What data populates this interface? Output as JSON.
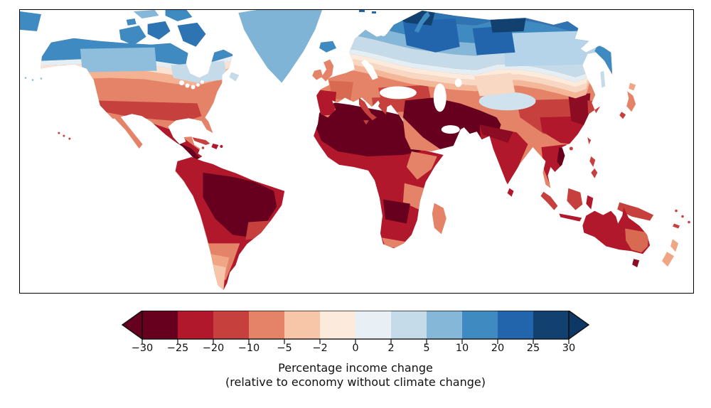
{
  "figure": {
    "kind": "choropleth world map with diverging colorbar",
    "background": "#ffffff",
    "frame_color": "#000000"
  },
  "colorbar": {
    "title_line1": "Percentage income change",
    "title_line2": "(relative to economy without climate change)",
    "ticks": [
      "−30",
      "−25",
      "−20",
      "−10",
      "−5",
      "−2",
      "0",
      "2",
      "5",
      "10",
      "20",
      "25",
      "30"
    ],
    "tick_values": [
      -30,
      -25,
      -20,
      -10,
      -5,
      -2,
      0,
      2,
      5,
      10,
      20,
      25,
      30
    ],
    "bins": [
      "#67001f",
      "#b2182b",
      "#c6403e",
      "#e58368",
      "#f7c5a8",
      "#fcebdd",
      "#e9f0f5",
      "#c6dbea",
      "#85b8d8",
      "#3e8ac1",
      "#2265ac",
      "#12406f"
    ],
    "under_color": "#67001f",
    "over_color": "#0d3765",
    "outline_color": "#111111"
  },
  "chart_data": {
    "type": "choropleth_map",
    "title": "Percentage income change (relative to economy without climate change)",
    "units": "percent",
    "scale_boundaries": [
      -30,
      -25,
      -20,
      -10,
      -5,
      -2,
      0,
      2,
      5,
      10,
      20,
      25,
      30
    ],
    "scale_extends": "both",
    "legend_position": "bottom center",
    "regions": [
      {
        "name": "Canada (most)",
        "approx_value": "+10 to +20"
      },
      {
        "name": "Alaska",
        "approx_value": "+10 to +20"
      },
      {
        "name": "Western Canada prairies",
        "approx_value": "+5 to +10"
      },
      {
        "name": "Southern Ontario / Quebec",
        "approx_value": "+2 to +5"
      },
      {
        "name": "Northern USA border states",
        "approx_value": "-2 to 0"
      },
      {
        "name": "Central USA",
        "approx_value": "-10 to -5"
      },
      {
        "name": "Southern USA",
        "approx_value": "-20 to -10"
      },
      {
        "name": "Mexico",
        "approx_value": "-30 to -20"
      },
      {
        "name": "Central America",
        "approx_value": "below -30"
      },
      {
        "name": "Greenland",
        "approx_value": "+5 to +10"
      },
      {
        "name": "Amazon basin",
        "approx_value": "below -30"
      },
      {
        "name": "Venezuela / eastern Brazil",
        "approx_value": "-25 to -20"
      },
      {
        "name": "Andean coast",
        "approx_value": "-10 to -5"
      },
      {
        "name": "Argentina",
        "approx_value": "-10 to -5"
      },
      {
        "name": "Patagonia",
        "approx_value": "-5 to -2"
      },
      {
        "name": "Sahara / Sahel / North Africa",
        "approx_value": "below -30"
      },
      {
        "name": "Central Africa",
        "approx_value": "-25 to -20"
      },
      {
        "name": "East African highlands",
        "approx_value": "-10 to -5"
      },
      {
        "name": "Southern Africa interior",
        "approx_value": "below -30"
      },
      {
        "name": "UK and Ireland",
        "approx_value": "-10 to -5"
      },
      {
        "name": "Iceland",
        "approx_value": "+10 to +20"
      },
      {
        "name": "Scandinavia",
        "approx_value": "+10 to +20"
      },
      {
        "name": "Central Europe",
        "approx_value": "-10 to -5"
      },
      {
        "name": "Spain / southern Europe",
        "approx_value": "-25 to -20"
      },
      {
        "name": "Northern Russia / Siberia",
        "approx_value": "+10 to +25"
      },
      {
        "name": "Arctic Siberian coast",
        "approx_value": "above +30"
      },
      {
        "name": "Central Russia",
        "approx_value": "+2 to +10"
      },
      {
        "name": "Middle East / Arabia / Iran",
        "approx_value": "below -30"
      },
      {
        "name": "Pakistan / north India",
        "approx_value": "below -30"
      },
      {
        "name": "India",
        "approx_value": "-25 to -20"
      },
      {
        "name": "Tibetan plateau",
        "approx_value": "+2 to +5"
      },
      {
        "name": "Eastern China",
        "approx_value": "-20 to -10"
      },
      {
        "name": "Northeast China",
        "approx_value": "-30 to -25"
      },
      {
        "name": "Japan",
        "approx_value": "-20 to -5"
      },
      {
        "name": "Southeast Asia",
        "approx_value": "-30 to -20"
      },
      {
        "name": "Indonesia",
        "approx_value": "-20 to -10"
      },
      {
        "name": "Australia",
        "approx_value": "-25 to -20"
      },
      {
        "name": "Southeast Australia",
        "approx_value": "-20 to -10"
      },
      {
        "name": "New Zealand",
        "approx_value": "-10 to -5"
      }
    ]
  },
  "map": {
    "ocean_color": "#ffffff",
    "palette": {
      "deep_loss": "#67001f",
      "loss_dark": "#8c0d23",
      "loss_crimson": "#b2182b",
      "loss_red": "#c6403e",
      "loss_redsalmon": "#d96a52",
      "loss_salmon": "#e58368",
      "loss_salmon_light": "#f0a585",
      "loss_pale": "#f7c5a8",
      "loss_peach": "#f8d8c3",
      "warm_white": "#fcebdd",
      "cool_white": "#e3eef5",
      "gain_light": "#c6dbea",
      "gain_ice": "#cfe2ee",
      "gain_lightmid": "#85b8d8",
      "gain_soft": "#8fbedd",
      "gain_big_light": "#b5d4e9",
      "gain_greenland": "#7fb4d6",
      "gain_mid": "#3e8ac1",
      "gain_blue": "#2e74b3",
      "gain_strong": "#2265ac",
      "gain_navy": "#12406f",
      "gain_darknavy": "#0d3765",
      "warm_strip": "#f4b79a",
      "warm_strip_na": "#f4b292",
      "pale_peach_na": "#fbe3d3"
    }
  }
}
